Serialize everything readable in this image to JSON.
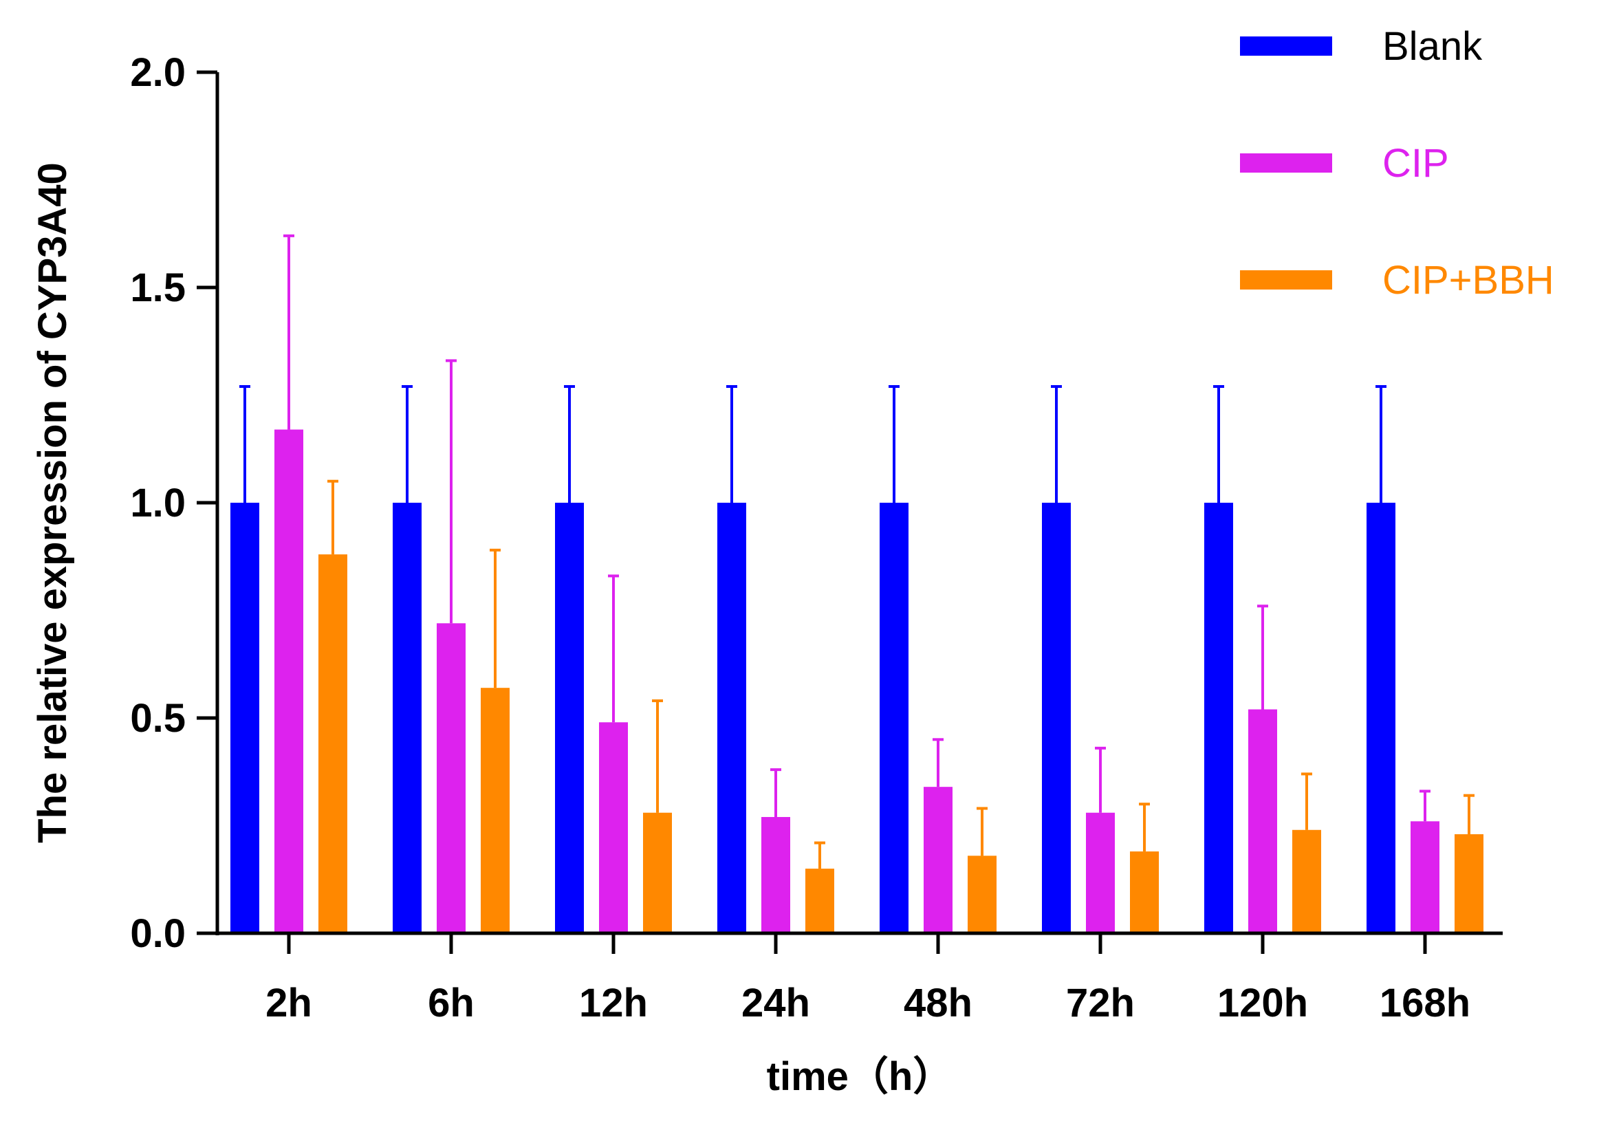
{
  "chart_data": {
    "type": "bar",
    "title": "",
    "xlabel": "time（h）",
    "ylabel": "The relative expression of CYP3A40",
    "categories": [
      "2h",
      "6h",
      "12h",
      "24h",
      "48h",
      "72h",
      "120h",
      "168h"
    ],
    "ylim": [
      0,
      2.0
    ],
    "yticks": [
      0.0,
      0.5,
      1.0,
      1.5,
      2.0
    ],
    "ytick_labels": [
      "0.0",
      "0.5",
      "1.0",
      "1.5",
      "2.0"
    ],
    "grid": false,
    "legend_position": "top-right",
    "error_bars": "upper",
    "series": [
      {
        "name": "Blank",
        "color": "#0000FF",
        "values": [
          1.0,
          1.0,
          1.0,
          1.0,
          1.0,
          1.0,
          1.0,
          1.0
        ],
        "errors": [
          0.27,
          0.27,
          0.27,
          0.27,
          0.27,
          0.27,
          0.27,
          0.27
        ]
      },
      {
        "name": "CIP",
        "color": "#DD22EE",
        "values": [
          1.17,
          0.72,
          0.49,
          0.27,
          0.34,
          0.28,
          0.52,
          0.26
        ],
        "errors": [
          0.45,
          0.61,
          0.34,
          0.11,
          0.11,
          0.15,
          0.24,
          0.07
        ]
      },
      {
        "name": "CIP+BBH",
        "color": "#FF8800",
        "values": [
          0.88,
          0.57,
          0.28,
          0.15,
          0.18,
          0.19,
          0.24,
          0.23
        ],
        "errors": [
          0.17,
          0.32,
          0.26,
          0.06,
          0.11,
          0.11,
          0.13,
          0.09
        ]
      }
    ]
  }
}
